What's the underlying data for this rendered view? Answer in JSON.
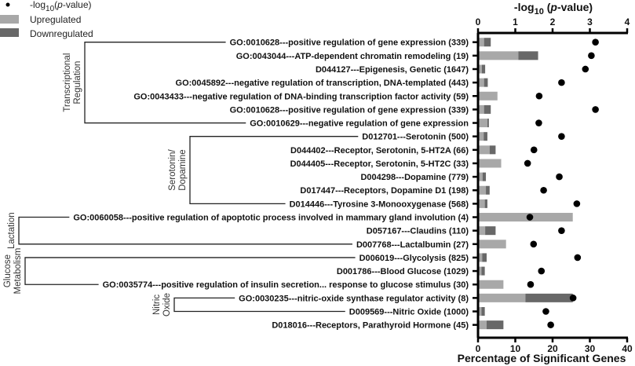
{
  "chart_data": {
    "type": "bar",
    "orientation": "horizontal",
    "stacked": true,
    "xlabel": "Percentage of Significant  Genes",
    "xlim": [
      0,
      40
    ],
    "xticks": [
      "0",
      "10",
      "20",
      "30",
      "40"
    ],
    "secondary_axis": {
      "label_prefix": "-log",
      "label_sub": "10",
      "label_italic": "p",
      "label_suffix": "-value)",
      "label_open": " (",
      "lim": [
        0,
        4
      ],
      "ticks": [
        "0",
        "1",
        "2",
        "3",
        "4"
      ]
    },
    "legend": {
      "placement": "top-left",
      "items": [
        {
          "name_prefix": "-log",
          "name_sub": "10",
          "name_open": "(",
          "name_italic": "p",
          "name_suffix": "-value)",
          "marker": "dot"
        },
        {
          "name": "Upregulated",
          "color": "#a8a8a8"
        },
        {
          "name": "Downregulated",
          "color": "#686868"
        }
      ]
    },
    "colors": {
      "up": "#a8a8a8",
      "down": "#686868",
      "dot": "#000000"
    },
    "categories": [
      "GO:0010628---positive regulation of gene expression (339)",
      "GO:0043044---ATP-dependent chromatin remodeling (19)",
      "D044127---Epigenesis, Genetic (1647)",
      "GO:0045892---negative regulation of transcription, DNA-templated (443)",
      "GO:0043433---negative regulation of DNA-binding transcription factor activity (59)",
      "GO:0010628---positive regulation of gene expression (339)",
      "GO:0010629---negative regulation of gene expression",
      "D012701---Serotonin (500)",
      "D044402---Receptor, Serotonin, 5-HT2A (66)",
      "D044405---Receptor, Serotonin, 5-HT2C (33)",
      "D004298---Dopamine (779)",
      "D017447---Receptors, Dopamine D1 (198)",
      "D014446---Tyrosine 3-Monooxygenase (568)",
      "GO:0060058---positive regulation of apoptotic process involved in mammary gland involution (4)",
      "D057167---Claudins (110)",
      "D007768---Lactalbumin (27)",
      "D006019---Glycolysis (825)",
      "D001786---Blood Glucose (1029)",
      "GO:0035774---positive regulation of insulin secretion... response to glucose stimulus (30)",
      "GO:0030235---nitric-oxide synthase regulator activity (8)",
      "D009569---Nitric Oxide (1000)",
      "D018016---Receptors, Parathyroid Hormone (45)"
    ],
    "series": [
      {
        "name": "Upregulated",
        "values": [
          1.3,
          10.5,
          0.7,
          1.3,
          4.9,
          1.3,
          2.2,
          1.2,
          2.8,
          5.9,
          0.9,
          1.8,
          1.5,
          25.1,
          1.6,
          7.2,
          0.8,
          0.6,
          6.5,
          12.4,
          0.6,
          2.0
        ]
      },
      {
        "name": "Downregulated",
        "values": [
          1.8,
          5.3,
          0.9,
          1.0,
          0,
          1.8,
          0.4,
          1.0,
          1.6,
          0,
          0.9,
          1.0,
          0.7,
          0,
          2.8,
          0,
          1.2,
          0.9,
          0,
          12.7,
          0.9,
          4.5
        ]
      },
      {
        "name": "-log10(p-value)",
        "values": [
          3.15,
          3.04,
          2.88,
          2.24,
          1.64,
          3.15,
          1.63,
          2.24,
          1.5,
          1.33,
          2.18,
          1.76,
          2.65,
          1.39,
          2.24,
          1.49,
          2.67,
          1.7,
          1.41,
          2.55,
          1.82,
          1.95
        ]
      }
    ],
    "groups": [
      {
        "name_lines": [
          "Transcriptional",
          "Regulation"
        ],
        "first": 0,
        "last": 6
      },
      {
        "name_lines": [
          "Serotonin/",
          "Dopamine"
        ],
        "first": 7,
        "last": 12
      },
      {
        "name_lines": [
          "Lactation"
        ],
        "first": 13,
        "last": 15
      },
      {
        "name_lines": [
          "Glucose",
          "Metabolism"
        ],
        "first": 16,
        "last": 18
      },
      {
        "name_lines": [
          "Nitric",
          "Oxide"
        ],
        "first": 19,
        "last": 20
      }
    ]
  }
}
